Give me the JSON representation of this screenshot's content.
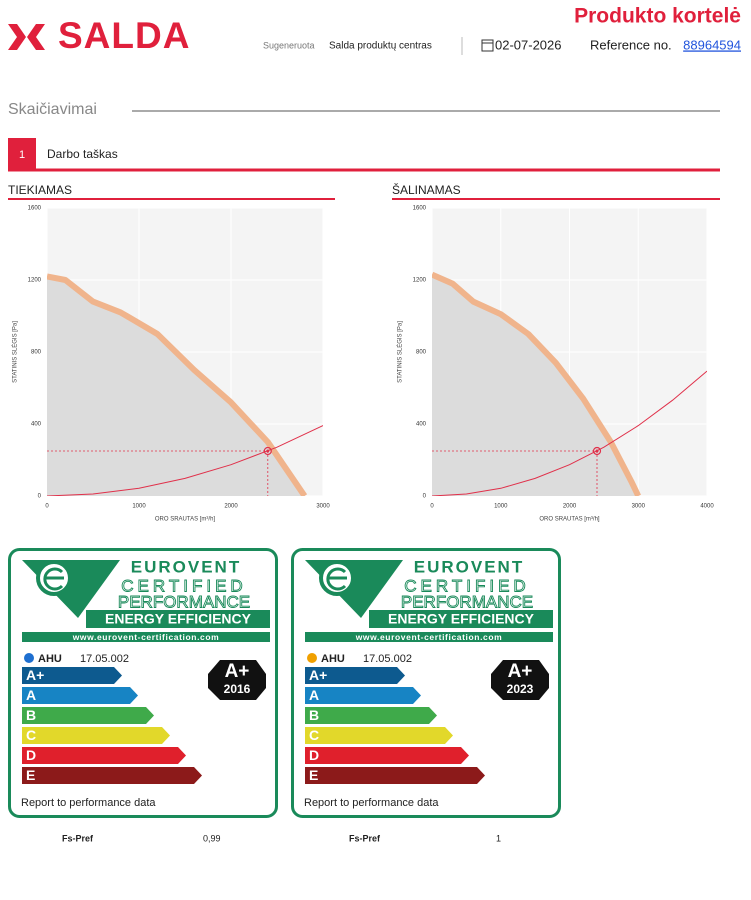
{
  "header": {
    "brand": "SALDA",
    "title": "Produkto kortelė",
    "generated_label": "Sugeneruota",
    "generated_by": "Salda produktų centras",
    "date": "02-07-2026",
    "reference_label": "Reference no.",
    "reference": "88964594"
  },
  "section": {
    "title": "Skaičiavimai",
    "step_number": "1",
    "step_label": "Darbo taškas"
  },
  "chart_data": [
    {
      "type": "line",
      "title": "TIEKIAMAS",
      "x_label": "ORO SRAUTAS [m³/h]",
      "y_label": "STATINIS SLĖGIS [Pa]",
      "xlim": [
        0,
        3000
      ],
      "ylim": [
        0,
        1600
      ],
      "xticks": [
        0,
        1000,
        2000,
        3000
      ],
      "yticks": [
        0,
        400,
        800,
        1200,
        1600
      ],
      "grid": true,
      "series": [
        {
          "x": [
            0,
            200,
            500,
            800,
            1200,
            1600,
            2000,
            2400,
            2600,
            2800
          ],
          "values": [
            1220,
            1200,
            1080,
            1020,
            900,
            700,
            520,
            300,
            150,
            0
          ],
          "color": "#f0b48c",
          "fill": "#dcdcdc"
        },
        {
          "x": [
            0,
            500,
            1000,
            1500,
            2000,
            2500,
            3000
          ],
          "values": [
            0,
            11,
            43,
            98,
            174,
            271,
            391
          ],
          "color": "#e0304a"
        },
        {
          "type": "scatter",
          "x": [
            2400
          ],
          "values": [
            250
          ],
          "color": "#e0304a"
        }
      ]
    },
    {
      "type": "line",
      "title": "ŠALINAMAS",
      "x_label": "ORO SRAUTAS [m³/h]",
      "y_label": "STATINIS SLĖGIS [Pa]",
      "xlim": [
        0,
        4000
      ],
      "ylim": [
        0,
        1600
      ],
      "xticks": [
        0,
        1000,
        2000,
        3000,
        4000
      ],
      "yticks": [
        0,
        400,
        800,
        1200,
        1600
      ],
      "grid": true,
      "series": [
        {
          "x": [
            0,
            300,
            600,
            1000,
            1400,
            1800,
            2200,
            2600,
            2900,
            3000
          ],
          "values": [
            1230,
            1180,
            1080,
            1010,
            900,
            740,
            540,
            300,
            80,
            0
          ],
          "color": "#f0b48c",
          "fill": "#dcdcdc"
        },
        {
          "x": [
            0,
            500,
            1000,
            1500,
            2000,
            2500,
            3000,
            3500,
            4000
          ],
          "values": [
            0,
            11,
            43,
            98,
            174,
            271,
            391,
            532,
            694
          ],
          "color": "#e0304a"
        },
        {
          "type": "scatter",
          "x": [
            2400
          ],
          "values": [
            250
          ],
          "color": "#e0304a"
        }
      ]
    }
  ],
  "labels": [
    {
      "brand": "EUROVENT",
      "line1": "CERTIFIED",
      "line2": "PERFORMANCE",
      "line3": "ENERGY EFFICIENCY",
      "url": "www.eurovent-certification.com",
      "product": "AHU",
      "code": "17.05.002",
      "classes": [
        "A+",
        "A",
        "B",
        "C",
        "D",
        "E"
      ],
      "class_colors": [
        "#0d5a8f",
        "#1784c4",
        "#3faa4a",
        "#e2d82a",
        "#e0202c",
        "#8c1a1a"
      ],
      "rating": "A+",
      "year": "2016",
      "note": "Report to performance data"
    },
    {
      "brand": "EUROVENT",
      "line1": "CERTIFIED",
      "line2": "PERFORMANCE",
      "line3": "ENERGY EFFICIENCY",
      "url": "www.eurovent-certification.com",
      "product": "AHU",
      "code": "17.05.002",
      "classes": [
        "A+",
        "A",
        "B",
        "C",
        "D",
        "E"
      ],
      "class_colors": [
        "#0d5a8f",
        "#1784c4",
        "#3faa4a",
        "#e2d82a",
        "#e0202c",
        "#8c1a1a"
      ],
      "rating": "A+",
      "year": "2023",
      "note": "Report to performance data"
    }
  ],
  "fs": [
    {
      "label": "Fs-Pref",
      "value": "0,99"
    },
    {
      "label": "Fs-Pref",
      "value": "1"
    }
  ]
}
